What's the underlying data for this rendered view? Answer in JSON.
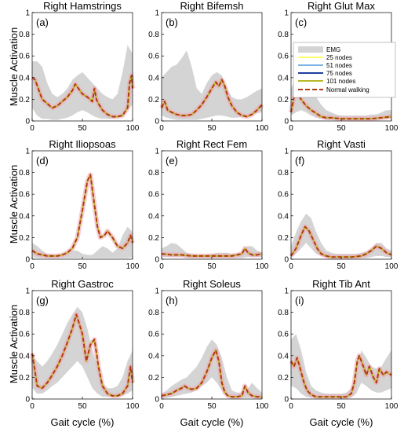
{
  "figure": {
    "ylabel": "Muscle Activation",
    "xlabel": "Gait cycle (%)"
  },
  "colors": {
    "emg_band": "#d4d4d4",
    "n25": "#ffff66",
    "n51": "#7fb2e5",
    "n75": "#1f3f9f",
    "n101": "#b8b828",
    "normal": "#b03a10",
    "halo": "#f2a0b4"
  },
  "legend": [
    "EMG",
    "25 nodes",
    "51 nodes",
    "75 nodes",
    "101 nodes",
    "Normal walking"
  ],
  "chart_data": [
    {
      "type": "line",
      "title": "Right Hamstrings",
      "panel": "(a)",
      "xlim": [
        0,
        100
      ],
      "ylim": [
        0,
        1
      ],
      "xticks": [
        0,
        50,
        100
      ],
      "yticks": [
        0,
        0.2,
        0.4,
        0.6,
        0.8,
        1
      ],
      "emg_x": [
        0,
        5,
        10,
        15,
        20,
        25,
        30,
        35,
        40,
        45,
        50,
        55,
        60,
        65,
        70,
        75,
        80,
        85,
        90,
        95,
        100
      ],
      "emg_low": [
        0.12,
        0.05,
        0.02,
        0.02,
        0.01,
        0.01,
        0.02,
        0.03,
        0.05,
        0.08,
        0.1,
        0.08,
        0.05,
        0.03,
        0.02,
        0.02,
        0.02,
        0.03,
        0.05,
        0.1,
        0.15
      ],
      "emg_high": [
        0.55,
        0.55,
        0.5,
        0.35,
        0.25,
        0.22,
        0.25,
        0.3,
        0.38,
        0.42,
        0.45,
        0.4,
        0.35,
        0.3,
        0.25,
        0.22,
        0.2,
        0.25,
        0.45,
        0.7,
        0.62
      ],
      "x": [
        0,
        3,
        6,
        10,
        15,
        20,
        25,
        30,
        35,
        40,
        43,
        46,
        50,
        55,
        60,
        62,
        64,
        66,
        70,
        75,
        80,
        85,
        90,
        95,
        97,
        99,
        100
      ],
      "y": [
        0.4,
        0.38,
        0.3,
        0.2,
        0.16,
        0.12,
        0.14,
        0.18,
        0.22,
        0.28,
        0.34,
        0.3,
        0.25,
        0.22,
        0.18,
        0.3,
        0.2,
        0.16,
        0.1,
        0.06,
        0.04,
        0.04,
        0.05,
        0.12,
        0.35,
        0.42,
        0.3
      ]
    },
    {
      "type": "line",
      "title": "Right Bifemsh",
      "panel": "(b)",
      "xlim": [
        0,
        100
      ],
      "ylim": [
        0,
        1
      ],
      "xticks": [
        0,
        50,
        100
      ],
      "yticks": [
        0,
        0.2,
        0.4,
        0.6,
        0.8,
        1
      ],
      "emg_x": [
        0,
        5,
        10,
        15,
        20,
        25,
        30,
        35,
        40,
        45,
        50,
        55,
        60,
        65,
        70,
        75,
        80,
        85,
        90,
        95,
        100
      ],
      "emg_low": [
        0.05,
        0.03,
        0.02,
        0.01,
        0.01,
        0.01,
        0.01,
        0.01,
        0.02,
        0.03,
        0.04,
        0.05,
        0.05,
        0.04,
        0.03,
        0.03,
        0.04,
        0.05,
        0.06,
        0.07,
        0.08
      ],
      "emg_high": [
        0.4,
        0.45,
        0.5,
        0.52,
        0.58,
        0.65,
        0.5,
        0.3,
        0.25,
        0.35,
        0.42,
        0.45,
        0.42,
        0.3,
        0.22,
        0.2,
        0.2,
        0.22,
        0.25,
        0.28,
        0.3
      ],
      "x": [
        0,
        3,
        6,
        10,
        15,
        20,
        25,
        30,
        35,
        40,
        45,
        50,
        54,
        57,
        60,
        63,
        66,
        70,
        75,
        80,
        85,
        90,
        95,
        100
      ],
      "y": [
        0.12,
        0.18,
        0.1,
        0.08,
        0.06,
        0.05,
        0.05,
        0.06,
        0.1,
        0.15,
        0.22,
        0.3,
        0.36,
        0.32,
        0.38,
        0.32,
        0.22,
        0.14,
        0.08,
        0.05,
        0.04,
        0.06,
        0.1,
        0.15
      ]
    },
    {
      "type": "line",
      "title": "Right Glut Max",
      "panel": "(c)",
      "xlim": [
        0,
        100
      ],
      "ylim": [
        0,
        1
      ],
      "xticks": [
        0,
        50,
        100
      ],
      "yticks": [
        0,
        0.2,
        0.4,
        0.6,
        0.8,
        1
      ],
      "emg_x": [
        0,
        5,
        10,
        15,
        20,
        25,
        30,
        35,
        40,
        45,
        50,
        55,
        60,
        65,
        70,
        75,
        80,
        85,
        90,
        95,
        100
      ],
      "emg_low": [
        0.05,
        0.08,
        0.1,
        0.08,
        0.05,
        0.03,
        0.02,
        0.01,
        0.01,
        0.01,
        0.01,
        0.01,
        0.01,
        0.01,
        0.01,
        0.01,
        0.01,
        0.01,
        0.02,
        0.02,
        0.03
      ],
      "emg_high": [
        0.3,
        0.4,
        0.45,
        0.38,
        0.3,
        0.22,
        0.15,
        0.1,
        0.08,
        0.06,
        0.05,
        0.05,
        0.05,
        0.05,
        0.05,
        0.05,
        0.06,
        0.06,
        0.08,
        0.1,
        0.1
      ],
      "x": [
        0,
        3,
        6,
        10,
        15,
        20,
        25,
        30,
        35,
        40,
        50,
        60,
        70,
        80,
        90,
        100
      ],
      "y": [
        0.08,
        0.22,
        0.26,
        0.2,
        0.14,
        0.1,
        0.07,
        0.04,
        0.03,
        0.03,
        0.02,
        0.02,
        0.02,
        0.02,
        0.03,
        0.04
      ]
    },
    {
      "type": "line",
      "title": "Right Iliopsoas",
      "panel": "(d)",
      "xlim": [
        0,
        100
      ],
      "ylim": [
        0,
        1
      ],
      "xticks": [
        0,
        50,
        100
      ],
      "yticks": [
        0,
        0.2,
        0.4,
        0.6,
        0.8,
        1
      ],
      "emg_x": [
        0,
        5,
        10,
        15,
        20,
        25,
        30,
        35,
        40,
        45,
        50,
        55,
        60,
        65,
        70,
        75,
        80,
        85,
        90,
        95,
        100
      ],
      "emg_low": [
        0.02,
        0.01,
        0.01,
        0.01,
        0.01,
        0.01,
        0.01,
        0.01,
        0.01,
        0.01,
        0.01,
        0.01,
        0.01,
        0.01,
        0.01,
        0.01,
        0.01,
        0.01,
        0.01,
        0.01,
        0.02
      ],
      "emg_high": [
        0.15,
        0.12,
        0.08,
        0.05,
        0.04,
        0.04,
        0.04,
        0.05,
        0.08,
        0.08,
        0.05,
        0.04,
        0.04,
        0.08,
        0.12,
        0.1,
        0.06,
        0.1,
        0.22,
        0.3,
        0.25
      ],
      "x": [
        0,
        5,
        10,
        15,
        20,
        25,
        30,
        35,
        40,
        45,
        50,
        55,
        58,
        62,
        65,
        68,
        72,
        75,
        80,
        85,
        90,
        95,
        98,
        100
      ],
      "y": [
        0.08,
        0.05,
        0.04,
        0.03,
        0.03,
        0.03,
        0.04,
        0.06,
        0.1,
        0.2,
        0.45,
        0.72,
        0.78,
        0.5,
        0.3,
        0.2,
        0.22,
        0.26,
        0.2,
        0.12,
        0.1,
        0.15,
        0.22,
        0.15
      ]
    },
    {
      "type": "line",
      "title": "Right Rect Fem",
      "panel": "(e)",
      "xlim": [
        0,
        100
      ],
      "ylim": [
        0,
        1
      ],
      "xticks": [
        0,
        50,
        100
      ],
      "yticks": [
        0,
        0.2,
        0.4,
        0.6,
        0.8,
        1
      ],
      "emg_x": [
        0,
        5,
        10,
        15,
        20,
        25,
        30,
        35,
        40,
        45,
        50,
        55,
        60,
        65,
        70,
        75,
        80,
        85,
        90,
        95,
        100
      ],
      "emg_low": [
        0.02,
        0.02,
        0.02,
        0.02,
        0.02,
        0.01,
        0.01,
        0.01,
        0.01,
        0.01,
        0.01,
        0.01,
        0.01,
        0.01,
        0.01,
        0.01,
        0.01,
        0.02,
        0.02,
        0.02,
        0.02
      ],
      "emg_high": [
        0.1,
        0.12,
        0.15,
        0.14,
        0.1,
        0.06,
        0.05,
        0.04,
        0.04,
        0.04,
        0.05,
        0.06,
        0.06,
        0.06,
        0.05,
        0.05,
        0.06,
        0.12,
        0.12,
        0.08,
        0.06
      ],
      "x": [
        0,
        10,
        20,
        30,
        40,
        50,
        60,
        70,
        75,
        80,
        83,
        86,
        90,
        95,
        100
      ],
      "y": [
        0.05,
        0.04,
        0.04,
        0.03,
        0.03,
        0.03,
        0.03,
        0.03,
        0.04,
        0.05,
        0.1,
        0.06,
        0.04,
        0.04,
        0.05
      ]
    },
    {
      "type": "line",
      "title": "Right Vasti",
      "panel": "(f)",
      "xlim": [
        0,
        100
      ],
      "ylim": [
        0,
        1
      ],
      "xticks": [
        0,
        50,
        100
      ],
      "yticks": [
        0,
        0.2,
        0.4,
        0.6,
        0.8,
        1
      ],
      "emg_x": [
        0,
        5,
        10,
        15,
        20,
        25,
        30,
        35,
        40,
        45,
        50,
        55,
        60,
        65,
        70,
        75,
        80,
        85,
        90,
        95,
        100
      ],
      "emg_low": [
        0.02,
        0.05,
        0.1,
        0.15,
        0.1,
        0.05,
        0.03,
        0.02,
        0.01,
        0.01,
        0.01,
        0.01,
        0.01,
        0.01,
        0.01,
        0.01,
        0.02,
        0.03,
        0.03,
        0.02,
        0.02
      ],
      "emg_high": [
        0.12,
        0.25,
        0.35,
        0.42,
        0.38,
        0.25,
        0.15,
        0.08,
        0.06,
        0.05,
        0.05,
        0.05,
        0.05,
        0.05,
        0.06,
        0.07,
        0.1,
        0.15,
        0.15,
        0.1,
        0.08
      ],
      "x": [
        0,
        5,
        10,
        14,
        18,
        22,
        26,
        30,
        35,
        40,
        50,
        60,
        70,
        75,
        80,
        85,
        90,
        95,
        100
      ],
      "y": [
        0.03,
        0.1,
        0.22,
        0.3,
        0.26,
        0.18,
        0.1,
        0.05,
        0.03,
        0.02,
        0.02,
        0.02,
        0.03,
        0.05,
        0.08,
        0.12,
        0.1,
        0.06,
        0.04
      ]
    },
    {
      "type": "line",
      "title": "Right Gastroc",
      "panel": "(g)",
      "xlim": [
        0,
        100
      ],
      "ylim": [
        0,
        1
      ],
      "xticks": [
        0,
        50,
        100
      ],
      "yticks": [
        0,
        0.2,
        0.4,
        0.6,
        0.8,
        1
      ],
      "emg_x": [
        0,
        5,
        10,
        15,
        20,
        25,
        30,
        35,
        40,
        45,
        50,
        55,
        60,
        65,
        70,
        75,
        80,
        85,
        90,
        95,
        100
      ],
      "emg_low": [
        0.1,
        0.05,
        0.05,
        0.08,
        0.12,
        0.15,
        0.2,
        0.25,
        0.3,
        0.35,
        0.3,
        0.2,
        0.1,
        0.05,
        0.02,
        0.02,
        0.02,
        0.02,
        0.03,
        0.05,
        0.08
      ],
      "emg_high": [
        0.4,
        0.35,
        0.3,
        0.35,
        0.42,
        0.5,
        0.6,
        0.7,
        0.78,
        0.85,
        0.8,
        0.65,
        0.45,
        0.3,
        0.15,
        0.1,
        0.1,
        0.12,
        0.2,
        0.35,
        0.45
      ],
      "x": [
        0,
        2,
        5,
        10,
        15,
        20,
        25,
        30,
        35,
        40,
        44,
        46,
        50,
        54,
        58,
        62,
        66,
        70,
        75,
        80,
        85,
        90,
        95,
        98,
        100
      ],
      "y": [
        0.42,
        0.3,
        0.12,
        0.1,
        0.15,
        0.22,
        0.3,
        0.4,
        0.52,
        0.65,
        0.78,
        0.72,
        0.6,
        0.35,
        0.5,
        0.55,
        0.3,
        0.12,
        0.05,
        0.03,
        0.03,
        0.05,
        0.12,
        0.3,
        0.15
      ]
    },
    {
      "type": "line",
      "title": "Right Soleus",
      "panel": "(h)",
      "xlim": [
        0,
        100
      ],
      "ylim": [
        0,
        1
      ],
      "xticks": [
        0,
        50,
        100
      ],
      "yticks": [
        0,
        0.2,
        0.4,
        0.6,
        0.8,
        1
      ],
      "emg_x": [
        0,
        5,
        10,
        15,
        20,
        25,
        30,
        35,
        40,
        45,
        50,
        55,
        60,
        65,
        70,
        75,
        80,
        85,
        90,
        95,
        100
      ],
      "emg_low": [
        0.01,
        0.01,
        0.02,
        0.03,
        0.04,
        0.05,
        0.06,
        0.08,
        0.12,
        0.15,
        0.2,
        0.15,
        0.08,
        0.03,
        0.01,
        0.01,
        0.01,
        0.01,
        0.01,
        0.01,
        0.01
      ],
      "emg_high": [
        0.05,
        0.08,
        0.12,
        0.15,
        0.18,
        0.2,
        0.25,
        0.3,
        0.38,
        0.48,
        0.55,
        0.5,
        0.38,
        0.2,
        0.08,
        0.06,
        0.06,
        0.08,
        0.15,
        0.1,
        0.06
      ],
      "x": [
        0,
        5,
        10,
        15,
        20,
        23,
        26,
        30,
        35,
        40,
        45,
        50,
        54,
        57,
        60,
        63,
        66,
        70,
        75,
        80,
        83,
        86,
        90,
        95,
        100
      ],
      "y": [
        0.03,
        0.04,
        0.05,
        0.08,
        0.1,
        0.12,
        0.1,
        0.09,
        0.1,
        0.15,
        0.25,
        0.38,
        0.45,
        0.35,
        0.15,
        0.06,
        0.03,
        0.02,
        0.02,
        0.03,
        0.12,
        0.06,
        0.03,
        0.02,
        0.02
      ]
    },
    {
      "type": "line",
      "title": "Right Tib Ant",
      "panel": "(i)",
      "xlim": [
        0,
        100
      ],
      "ylim": [
        0,
        1
      ],
      "xticks": [
        0,
        50,
        100
      ],
      "yticks": [
        0,
        0.2,
        0.4,
        0.6,
        0.8,
        1
      ],
      "emg_x": [
        0,
        5,
        10,
        15,
        20,
        25,
        30,
        35,
        40,
        45,
        50,
        55,
        60,
        65,
        70,
        75,
        80,
        85,
        90,
        95,
        100
      ],
      "emg_low": [
        0.12,
        0.1,
        0.05,
        0.02,
        0.01,
        0.01,
        0.01,
        0.01,
        0.01,
        0.01,
        0.01,
        0.01,
        0.01,
        0.05,
        0.15,
        0.12,
        0.08,
        0.06,
        0.06,
        0.08,
        0.1
      ],
      "emg_high": [
        0.55,
        0.6,
        0.45,
        0.25,
        0.12,
        0.08,
        0.06,
        0.05,
        0.05,
        0.05,
        0.05,
        0.06,
        0.1,
        0.25,
        0.45,
        0.38,
        0.3,
        0.28,
        0.3,
        0.38,
        0.45
      ],
      "x": [
        0,
        3,
        6,
        8,
        10,
        13,
        16,
        20,
        25,
        30,
        35,
        40,
        50,
        55,
        60,
        63,
        66,
        68,
        72,
        75,
        78,
        82,
        85,
        88,
        92,
        95,
        100
      ],
      "y": [
        0.35,
        0.3,
        0.38,
        0.32,
        0.25,
        0.15,
        0.08,
        0.04,
        0.02,
        0.02,
        0.02,
        0.02,
        0.02,
        0.02,
        0.05,
        0.15,
        0.35,
        0.4,
        0.3,
        0.22,
        0.3,
        0.2,
        0.15,
        0.28,
        0.22,
        0.25,
        0.22
      ]
    }
  ]
}
